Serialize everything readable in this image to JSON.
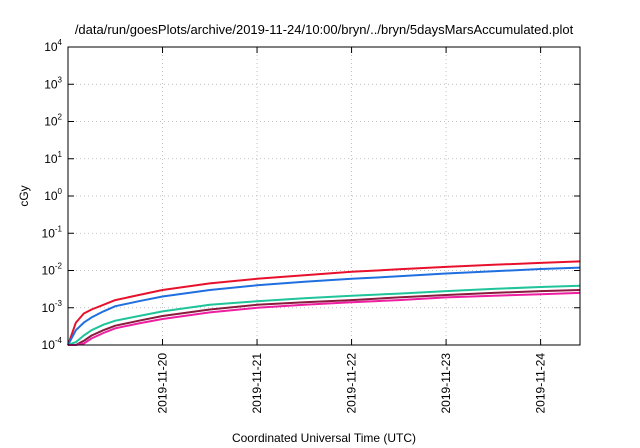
{
  "chart_data": {
    "type": "line",
    "title": "/data/run/goesPlots/archive/2019-11-24/10:00/bryn/../bryn/5daysMarsAccumulated.plot",
    "xlabel": "Coordinated Universal Time (UTC)",
    "ylabel": "cGy",
    "yscale": "log",
    "ylim": [
      0.0001,
      10000
    ],
    "xlim": [
      "2019-11-19 00:00",
      "2019-11-24 10:00"
    ],
    "grid": true,
    "yticks": [
      {
        "base": "10",
        "exp": "-4",
        "value": 0.0001
      },
      {
        "base": "10",
        "exp": "-3",
        "value": 0.001
      },
      {
        "base": "10",
        "exp": "-2",
        "value": 0.01
      },
      {
        "base": "10",
        "exp": "-1",
        "value": 0.1
      },
      {
        "base": "10",
        "exp": "0",
        "value": 1
      },
      {
        "base": "10",
        "exp": "1",
        "value": 10
      },
      {
        "base": "10",
        "exp": "2",
        "value": 100
      },
      {
        "base": "10",
        "exp": "3",
        "value": 1000
      },
      {
        "base": "10",
        "exp": "4",
        "value": 10000
      }
    ],
    "xticks": [
      {
        "label": "2019-11-20",
        "value": "2019-11-20 00:00"
      },
      {
        "label": "2019-11-21",
        "value": "2019-11-21 00:00"
      },
      {
        "label": "2019-11-22",
        "value": "2019-11-22 00:00"
      },
      {
        "label": "2019-11-23",
        "value": "2019-11-23 00:00"
      },
      {
        "label": "2019-11-24",
        "value": "2019-11-24 00:00"
      }
    ],
    "x": [
      "2019-11-19 00:00",
      "2019-11-19 02:00",
      "2019-11-19 04:00",
      "2019-11-19 06:00",
      "2019-11-19 09:00",
      "2019-11-19 12:00",
      "2019-11-19 18:00",
      "2019-11-20 00:00",
      "2019-11-20 12:00",
      "2019-11-21 00:00",
      "2019-11-21 12:00",
      "2019-11-22 00:00",
      "2019-11-22 12:00",
      "2019-11-23 00:00",
      "2019-11-23 12:00",
      "2019-11-24 00:00",
      "2019-11-24 10:00"
    ],
    "series": [
      {
        "color": "#e8112d",
        "values": [
          0.0001,
          0.0004,
          0.0007,
          0.0009,
          0.0012,
          0.0016,
          0.0022,
          0.003,
          0.0045,
          0.006,
          0.0075,
          0.0092,
          0.0108,
          0.0125,
          0.0142,
          0.016,
          0.0175
        ]
      },
      {
        "color": "#1f6fe0",
        "values": [
          0.0001,
          0.00025,
          0.0004,
          0.00055,
          0.0008,
          0.0011,
          0.0015,
          0.002,
          0.003,
          0.004,
          0.005,
          0.006,
          0.007,
          0.0083,
          0.0095,
          0.011,
          0.012
        ]
      },
      {
        "color": "#1fc49a",
        "values": [
          0.0001,
          0.00012,
          0.00018,
          0.00025,
          0.00035,
          0.00045,
          0.0006,
          0.0008,
          0.0012,
          0.0015,
          0.0018,
          0.0021,
          0.0024,
          0.0028,
          0.0032,
          0.0036,
          0.0039
        ]
      },
      {
        "color": "#8a1a3e",
        "values": [
          0.0001,
          0.0001,
          0.00013,
          0.00018,
          0.00025,
          0.00033,
          0.00045,
          0.0006,
          0.0009,
          0.0012,
          0.0014,
          0.0016,
          0.0019,
          0.0022,
          0.0025,
          0.0028,
          0.003
        ]
      },
      {
        "color": "#ee1ea0",
        "values": [
          0.0001,
          0.0001,
          0.00011,
          0.00015,
          0.00021,
          0.00028,
          0.00038,
          0.0005,
          0.00075,
          0.001,
          0.0012,
          0.0014,
          0.0016,
          0.0019,
          0.0021,
          0.0023,
          0.0025
        ]
      }
    ]
  }
}
